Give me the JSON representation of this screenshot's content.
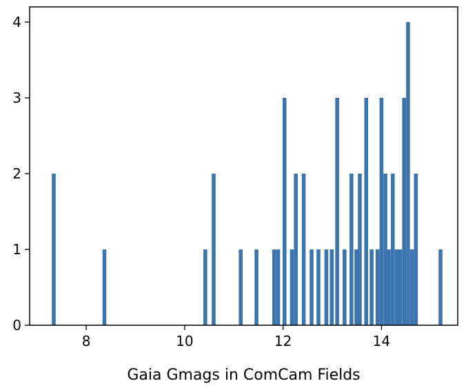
{
  "chart_data": {
    "type": "bar",
    "xlabel": "Gaia Gmags in ComCam Fields",
    "ylabel": "",
    "xlim": [
      6.85,
      15.55
    ],
    "ylim": [
      0,
      4.2
    ],
    "xticks": [
      8,
      10,
      12,
      14
    ],
    "yticks": [
      0,
      1,
      2,
      3,
      4
    ],
    "grid": false,
    "bar_color": "#3b75af",
    "bin_width": 0.078,
    "bins": [
      {
        "x": 7.34,
        "count": 2
      },
      {
        "x": 8.37,
        "count": 1
      },
      {
        "x": 10.42,
        "count": 1
      },
      {
        "x": 10.59,
        "count": 2
      },
      {
        "x": 11.14,
        "count": 1
      },
      {
        "x": 11.46,
        "count": 1
      },
      {
        "x": 11.82,
        "count": 1
      },
      {
        "x": 11.9,
        "count": 1
      },
      {
        "x": 12.03,
        "count": 3
      },
      {
        "x": 12.18,
        "count": 1
      },
      {
        "x": 12.26,
        "count": 2
      },
      {
        "x": 12.42,
        "count": 2
      },
      {
        "x": 12.58,
        "count": 1
      },
      {
        "x": 12.72,
        "count": 1
      },
      {
        "x": 12.88,
        "count": 1
      },
      {
        "x": 12.99,
        "count": 1
      },
      {
        "x": 13.1,
        "count": 3
      },
      {
        "x": 13.25,
        "count": 1
      },
      {
        "x": 13.39,
        "count": 2
      },
      {
        "x": 13.49,
        "count": 1
      },
      {
        "x": 13.56,
        "count": 2
      },
      {
        "x": 13.69,
        "count": 3
      },
      {
        "x": 13.8,
        "count": 1
      },
      {
        "x": 13.92,
        "count": 1
      },
      {
        "x": 14.0,
        "count": 3
      },
      {
        "x": 14.08,
        "count": 2
      },
      {
        "x": 14.15,
        "count": 1
      },
      {
        "x": 14.23,
        "count": 2
      },
      {
        "x": 14.31,
        "count": 1
      },
      {
        "x": 14.38,
        "count": 1
      },
      {
        "x": 14.46,
        "count": 3
      },
      {
        "x": 14.54,
        "count": 4
      },
      {
        "x": 14.62,
        "count": 1
      },
      {
        "x": 14.7,
        "count": 2
      },
      {
        "x": 15.2,
        "count": 1
      }
    ]
  }
}
